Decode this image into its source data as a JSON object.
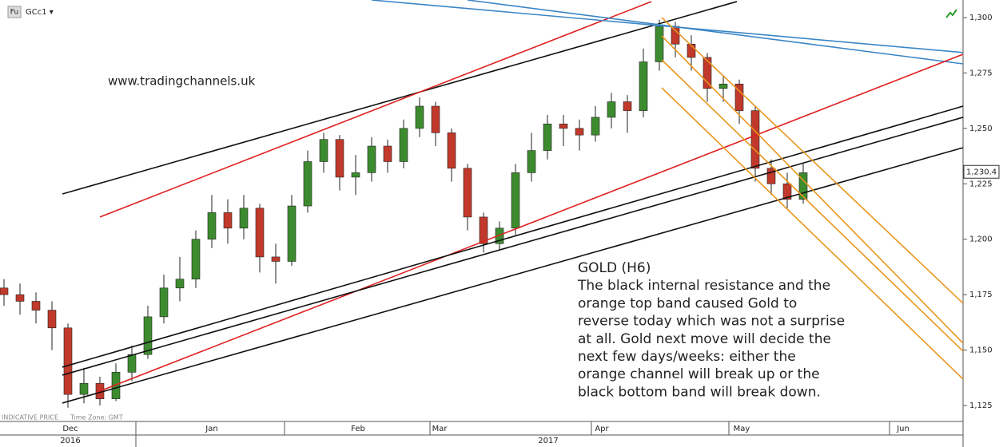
{
  "chart_data": {
    "type": "candlestick",
    "symbol_badge": "Fu",
    "symbol": "GCc1 ▾",
    "watermark": "www.tradingchannels.uk",
    "footer_note": "INDICATIVE PRICE",
    "timezone_note": "Time Zone: GMT",
    "annotation": [
      "GOLD (H6)",
      "The black internal resistance and the",
      "orange top band caused Gold to",
      "reverse today which was not a surprise",
      "at all. Gold next move will decide the",
      "next few days/weeks: either the",
      "orange channel will break up or the",
      "black bottom band will break down."
    ],
    "x": [
      0,
      1,
      2,
      3,
      4,
      5,
      6,
      7,
      8,
      9,
      10,
      11,
      12,
      13,
      14,
      15,
      16,
      17,
      18,
      19,
      20,
      21,
      22,
      23,
      24,
      25,
      26,
      27,
      28,
      29,
      30,
      31,
      32,
      33,
      34,
      35,
      36,
      37,
      38,
      39,
      40,
      41,
      42,
      43,
      44,
      45,
      46,
      47,
      48,
      49,
      50
    ],
    "open": [
      1178,
      1175,
      1172,
      1168,
      1160,
      1130,
      1135,
      1128,
      1140,
      1148,
      1165,
      1178,
      1182,
      1200,
      1212,
      1205,
      1214,
      1192,
      1190,
      1215,
      1235,
      1245,
      1228,
      1230,
      1242,
      1235,
      1250,
      1260,
      1248,
      1232,
      1210,
      1198,
      1205,
      1230,
      1240,
      1252,
      1250,
      1247,
      1255,
      1262,
      1258,
      1280,
      1296,
      1288,
      1282,
      1268,
      1270,
      1258,
      1232,
      1225,
      1218
    ],
    "high": [
      1182,
      1180,
      1176,
      1172,
      1162,
      1142,
      1138,
      1144,
      1152,
      1170,
      1184,
      1192,
      1204,
      1220,
      1218,
      1220,
      1216,
      1198,
      1220,
      1240,
      1248,
      1247,
      1238,
      1246,
      1245,
      1254,
      1264,
      1262,
      1250,
      1234,
      1212,
      1208,
      1234,
      1248,
      1256,
      1256,
      1254,
      1260,
      1266,
      1265,
      1286,
      1299,
      1298,
      1292,
      1284,
      1274,
      1272,
      1260,
      1236,
      1230,
      1234
    ],
    "low": [
      1170,
      1166,
      1162,
      1150,
      1124,
      1126,
      1125,
      1127,
      1136,
      1146,
      1162,
      1172,
      1178,
      1196,
      1198,
      1200,
      1185,
      1180,
      1188,
      1212,
      1230,
      1222,
      1220,
      1226,
      1230,
      1232,
      1246,
      1242,
      1226,
      1204,
      1194,
      1195,
      1202,
      1226,
      1236,
      1242,
      1240,
      1244,
      1250,
      1248,
      1255,
      1276,
      1282,
      1276,
      1262,
      1262,
      1252,
      1226,
      1220,
      1214,
      1216
    ],
    "close": [
      1175,
      1172,
      1168,
      1160,
      1130,
      1135,
      1128,
      1140,
      1148,
      1165,
      1178,
      1182,
      1200,
      1212,
      1205,
      1214,
      1192,
      1190,
      1215,
      1235,
      1245,
      1228,
      1230,
      1242,
      1235,
      1250,
      1260,
      1248,
      1232,
      1210,
      1198,
      1205,
      1230,
      1240,
      1252,
      1250,
      1247,
      1255,
      1262,
      1258,
      1280,
      1296,
      1288,
      1282,
      1268,
      1270,
      1258,
      1232,
      1225,
      1218,
      1230
    ],
    "up_color": "#3d8b2f",
    "down_color": "#c0392b",
    "xlim": [
      -0.25,
      60
    ],
    "ylim": [
      1117.8,
      1307.9
    ],
    "yticks": [
      {
        "value": 1125,
        "label": "1,125"
      },
      {
        "value": 1150,
        "label": "1,150"
      },
      {
        "value": 1175,
        "label": "1,175"
      },
      {
        "value": 1200,
        "label": "1,200"
      },
      {
        "value": 1225,
        "label": "1,225"
      },
      {
        "value": 1250,
        "label": "1,250"
      },
      {
        "value": 1275,
        "label": "1,275"
      },
      {
        "value": 1300,
        "label": "1,300"
      }
    ],
    "xticks": [
      {
        "value": 4.15,
        "label": "Dec"
      },
      {
        "value": 13,
        "label": "Jan"
      },
      {
        "value": 22.15,
        "label": "Feb"
      },
      {
        "value": 27.25,
        "label": "Mar"
      },
      {
        "value": 37.4,
        "label": "Apr"
      },
      {
        "value": 46.15,
        "label": "May"
      },
      {
        "value": 56.25,
        "label": "Jun"
      }
    ],
    "month_boundaries": [
      8.25,
      17.55,
      26.65,
      36.75,
      45.35,
      55.4
    ],
    "years": [
      {
        "value": 4.15,
        "label": "2016"
      },
      {
        "value": 34.05,
        "label": "2017"
      }
    ],
    "year_boundaries": [
      8.25
    ],
    "last_price": {
      "value": 1230.4,
      "label": "1,230.4"
    },
    "trendlines": [
      {
        "color": "#111111",
        "x": [
          3.65,
          45.85
        ],
        "y": [
          1220.4,
          1307.2
        ]
      },
      {
        "color": "#e02020",
        "x": [
          6,
          40.5
        ],
        "y": [
          1210.0,
          1307.2
        ]
      },
      {
        "color": "#3b86c6",
        "x": [
          23,
          60
        ],
        "y": [
          1307.9,
          1284.2
        ]
      },
      {
        "color": "#3b86c6",
        "x": [
          29,
          60
        ],
        "y": [
          1307.9,
          1279.1
        ]
      },
      {
        "color": "#e02020",
        "x": [
          5.75,
          60
        ],
        "y": [
          1130.8,
          1283.4
        ]
      },
      {
        "color": "#111111",
        "x": [
          3.65,
          60
        ],
        "y": [
          1126.1,
          1241.3
        ]
      },
      {
        "color": "#111111",
        "x": [
          3.65,
          60
        ],
        "y": [
          1142.3,
          1260.0
        ]
      },
      {
        "color": "#111111",
        "x": [
          3.65,
          60
        ],
        "y": [
          1138.7,
          1255.0
        ]
      },
      {
        "color": "#e8961e",
        "x": [
          41.15,
          60
        ],
        "y": [
          1300.0,
          1171.1
        ]
      },
      {
        "color": "#e8961e",
        "x": [
          41.15,
          60
        ],
        "y": [
          1291.7,
          1153.1
        ]
      },
      {
        "color": "#e8961e",
        "x": [
          41.15,
          60
        ],
        "y": [
          1280.9,
          1149.5
        ]
      },
      {
        "color": "#e8961e",
        "x": [
          41.15,
          60
        ],
        "y": [
          1268.3,
          1136.9
        ]
      }
    ]
  }
}
